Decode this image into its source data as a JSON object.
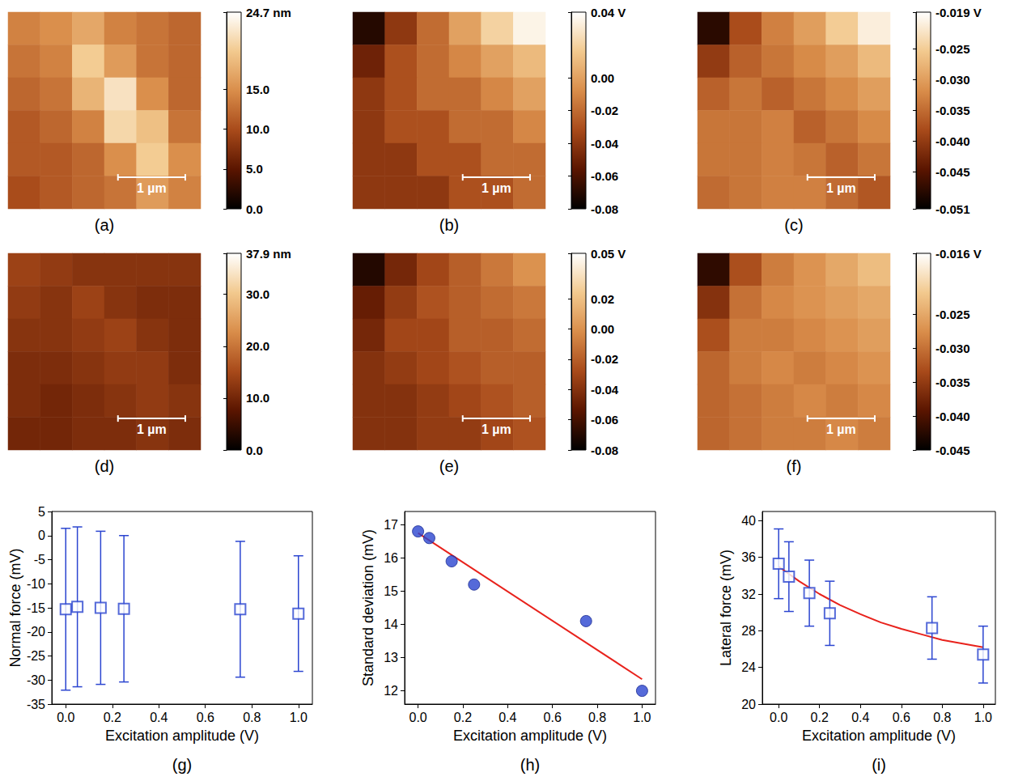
{
  "chart_data": [
    {
      "type": "heatmap",
      "title": "(a)",
      "image_size": 2.86,
      "scale_bar": {
        "label": "1 µm",
        "length": 1
      },
      "cells": [
        [
          14,
          15,
          17,
          14,
          13,
          12
        ],
        [
          13,
          14,
          20,
          16,
          13,
          12
        ],
        [
          12,
          13,
          18,
          22,
          15,
          12
        ],
        [
          11,
          12,
          14,
          21,
          19,
          13
        ],
        [
          11,
          11,
          12,
          15,
          20,
          15
        ],
        [
          10,
          11,
          12,
          13,
          16,
          14
        ]
      ],
      "colorbar": {
        "range": [
          0,
          24.7
        ],
        "ticks": [
          {
            "value": 0,
            "label": "0.0"
          },
          {
            "value": 5,
            "label": "5.0"
          },
          {
            "value": 10,
            "label": "10.0"
          },
          {
            "value": 15,
            "label": "15.0"
          },
          {
            "value": 24.7,
            "label": "24.7 nm"
          }
        ]
      }
    },
    {
      "type": "heatmap",
      "title": "(b)",
      "image_size": 2.86,
      "scale_bar": {
        "label": "1 µm",
        "length": 1
      },
      "cells": [
        [
          -0.07,
          -0.04,
          -0.02,
          0.0,
          0.02,
          0.035
        ],
        [
          -0.05,
          -0.03,
          -0.02,
          -0.01,
          0.0,
          0.01
        ],
        [
          -0.04,
          -0.03,
          -0.02,
          -0.02,
          -0.01,
          0.0
        ],
        [
          -0.04,
          -0.03,
          -0.03,
          -0.02,
          -0.02,
          -0.01
        ],
        [
          -0.04,
          -0.04,
          -0.03,
          -0.03,
          -0.02,
          -0.02
        ],
        [
          -0.04,
          -0.04,
          -0.04,
          -0.03,
          -0.03,
          -0.02
        ]
      ],
      "colorbar": {
        "range": [
          -0.08,
          0.04
        ],
        "ticks": [
          {
            "value": -0.08,
            "label": "-0.08"
          },
          {
            "value": -0.06,
            "label": "-0.06"
          },
          {
            "value": -0.04,
            "label": "-0.04"
          },
          {
            "value": -0.02,
            "label": "-0.02"
          },
          {
            "value": 0,
            "label": "0.00"
          },
          {
            "value": 0.04,
            "label": "0.04 V"
          }
        ]
      }
    },
    {
      "type": "heatmap",
      "title": "(c)",
      "image_size": 2.86,
      "scale_bar": {
        "label": "1 µm",
        "length": 1
      },
      "cells": [
        [
          -0.048,
          -0.038,
          -0.033,
          -0.03,
          -0.025,
          -0.021
        ],
        [
          -0.04,
          -0.036,
          -0.034,
          -0.032,
          -0.03,
          -0.027
        ],
        [
          -0.036,
          -0.034,
          -0.036,
          -0.034,
          -0.032,
          -0.03
        ],
        [
          -0.034,
          -0.034,
          -0.033,
          -0.036,
          -0.034,
          -0.032
        ],
        [
          -0.034,
          -0.034,
          -0.033,
          -0.034,
          -0.036,
          -0.034
        ],
        [
          -0.035,
          -0.034,
          -0.033,
          -0.033,
          -0.035,
          -0.037
        ]
      ],
      "colorbar": {
        "range": [
          -0.051,
          -0.019
        ],
        "ticks": [
          {
            "value": -0.051,
            "label": "-0.051"
          },
          {
            "value": -0.045,
            "label": "-0.045"
          },
          {
            "value": -0.04,
            "label": "-0.040"
          },
          {
            "value": -0.035,
            "label": "-0.035"
          },
          {
            "value": -0.03,
            "label": "-0.030"
          },
          {
            "value": -0.025,
            "label": "-0.025"
          },
          {
            "value": -0.019,
            "label": "-0.019 V"
          }
        ]
      }
    },
    {
      "type": "heatmap",
      "title": "(d)",
      "image_size": 2.86,
      "scale_bar": {
        "label": "1 µm",
        "length": 1
      },
      "cells": [
        [
          14,
          13,
          12,
          12,
          12,
          12
        ],
        [
          13,
          12,
          14,
          12,
          11,
          11
        ],
        [
          12,
          12,
          13,
          14,
          12,
          11
        ],
        [
          11,
          11,
          12,
          13,
          13,
          11
        ],
        [
          11,
          10,
          11,
          12,
          13,
          12
        ],
        [
          10,
          10,
          11,
          11,
          12,
          11
        ]
      ],
      "colorbar": {
        "range": [
          0,
          37.9
        ],
        "ticks": [
          {
            "value": 0,
            "label": "0.0"
          },
          {
            "value": 10,
            "label": "10.0"
          },
          {
            "value": 20,
            "label": "20.0"
          },
          {
            "value": 30,
            "label": "30.0"
          },
          {
            "value": 37.9,
            "label": "37.9 nm"
          }
        ]
      }
    },
    {
      "type": "heatmap",
      "title": "(e)",
      "image_size": 2.86,
      "scale_bar": {
        "label": "1 µm",
        "length": 1
      },
      "cells": [
        [
          -0.07,
          -0.045,
          -0.03,
          -0.02,
          -0.01,
          0.0
        ],
        [
          -0.05,
          -0.035,
          -0.025,
          -0.02,
          -0.015,
          -0.01
        ],
        [
          -0.045,
          -0.03,
          -0.03,
          -0.02,
          -0.02,
          -0.015
        ],
        [
          -0.04,
          -0.035,
          -0.03,
          -0.025,
          -0.02,
          -0.02
        ],
        [
          -0.04,
          -0.04,
          -0.035,
          -0.03,
          -0.025,
          -0.02
        ],
        [
          -0.04,
          -0.04,
          -0.035,
          -0.035,
          -0.03,
          -0.025
        ]
      ],
      "colorbar": {
        "range": [
          -0.08,
          0.05
        ],
        "ticks": [
          {
            "value": -0.08,
            "label": "-0.08"
          },
          {
            "value": -0.06,
            "label": "-0.06"
          },
          {
            "value": -0.04,
            "label": "-0.04"
          },
          {
            "value": -0.02,
            "label": "-0.02"
          },
          {
            "value": 0,
            "label": "0.00"
          },
          {
            "value": 0.02,
            "label": "0.02"
          },
          {
            "value": 0.05,
            "label": "0.05 V"
          }
        ]
      }
    },
    {
      "type": "heatmap",
      "title": "(f)",
      "image_size": 2.86,
      "scale_bar": {
        "label": "1 µm",
        "length": 1
      },
      "cells": [
        [
          -0.042,
          -0.033,
          -0.029,
          -0.027,
          -0.025,
          -0.023
        ],
        [
          -0.036,
          -0.03,
          -0.028,
          -0.027,
          -0.026,
          -0.025
        ],
        [
          -0.033,
          -0.029,
          -0.029,
          -0.028,
          -0.027,
          -0.026
        ],
        [
          -0.031,
          -0.029,
          -0.028,
          -0.029,
          -0.028,
          -0.027
        ],
        [
          -0.031,
          -0.03,
          -0.029,
          -0.028,
          -0.029,
          -0.028
        ],
        [
          -0.031,
          -0.03,
          -0.029,
          -0.029,
          -0.028,
          -0.029
        ]
      ],
      "colorbar": {
        "range": [
          -0.045,
          -0.016
        ],
        "ticks": [
          {
            "value": -0.045,
            "label": "-0.045"
          },
          {
            "value": -0.04,
            "label": "-0.040"
          },
          {
            "value": -0.035,
            "label": "-0.035"
          },
          {
            "value": -0.03,
            "label": "-0.030"
          },
          {
            "value": -0.025,
            "label": "-0.025"
          },
          {
            "value": -0.016,
            "label": "-0.016 V"
          }
        ]
      }
    },
    {
      "type": "scatter",
      "title": "(g)",
      "x_label": "Excitation amplitude (V)",
      "y_label": "Normal force (mV)",
      "grid": false,
      "xlim": [
        -0.06,
        1.06
      ],
      "xticks": [
        {
          "value": 0,
          "label": "0.0"
        },
        {
          "value": 0.2,
          "label": "0.2"
        },
        {
          "value": 0.4,
          "label": "0.4"
        },
        {
          "value": 0.6,
          "label": "0.6"
        },
        {
          "value": 0.8,
          "label": "0.8"
        },
        {
          "value": 1,
          "label": "1.0"
        }
      ],
      "ylim": [
        -35,
        5
      ],
      "yticks": [
        -35,
        -30,
        -25,
        -20,
        -15,
        -10,
        -5,
        0,
        5
      ],
      "series": [
        {
          "type": "scatter",
          "marker": "square_open",
          "color": "#2b45d0",
          "x": [
            0,
            0.05,
            0.15,
            0.25,
            0.75,
            1.0
          ],
          "values": [
            -15.3,
            -14.8,
            -15.0,
            -15.2,
            -15.3,
            -16.2
          ],
          "errors": [
            16.8,
            16.6,
            15.9,
            15.2,
            14.1,
            12.0
          ]
        }
      ]
    },
    {
      "type": "scatter",
      "title": "(h)",
      "x_label": "Excitation amplitude (V)",
      "y_label": "Standard deviation (mV)",
      "grid": false,
      "xlim": [
        -0.06,
        1.06
      ],
      "xticks": [
        {
          "value": 0,
          "label": "0.0"
        },
        {
          "value": 0.2,
          "label": "0.2"
        },
        {
          "value": 0.4,
          "label": "0.4"
        },
        {
          "value": 0.6,
          "label": "0.6"
        },
        {
          "value": 0.8,
          "label": "0.8"
        },
        {
          "value": 1,
          "label": "1.0"
        }
      ],
      "ylim": [
        11.6,
        17.4
      ],
      "yticks": [
        12,
        13,
        14,
        15,
        16,
        17
      ],
      "series": [
        {
          "type": "scatter",
          "marker": "circle",
          "color": "#2b45d0",
          "x": [
            0,
            0.05,
            0.15,
            0.25,
            0.75,
            1.0
          ],
          "values": [
            16.8,
            16.6,
            15.9,
            15.2,
            14.1,
            12.0
          ]
        },
        {
          "type": "line",
          "marker": "none",
          "line_style": "solid",
          "color": "#e8221c",
          "x": [
            0,
            1.0
          ],
          "values": [
            16.75,
            12.35
          ]
        }
      ]
    },
    {
      "type": "scatter",
      "title": "(i)",
      "x_label": "Excitation amplitude (V)",
      "y_label": "Lateral force (mV)",
      "grid": false,
      "xlim": [
        -0.08,
        1.06
      ],
      "xticks": [
        {
          "value": 0,
          "label": "0.0"
        },
        {
          "value": 0.2,
          "label": "0.2"
        },
        {
          "value": 0.4,
          "label": "0.4"
        },
        {
          "value": 0.6,
          "label": "0.6"
        },
        {
          "value": 0.8,
          "label": "0.8"
        },
        {
          "value": 1,
          "label": "1.0"
        }
      ],
      "ylim": [
        20,
        41
      ],
      "yticks": [
        20,
        24,
        28,
        32,
        36,
        40
      ],
      "series": [
        {
          "type": "scatter",
          "marker": "square_open",
          "color": "#2b45d0",
          "x": [
            0,
            0.05,
            0.15,
            0.25,
            0.75,
            1.0
          ],
          "values": [
            35.3,
            33.9,
            32.1,
            29.9,
            28.3,
            25.4
          ],
          "errors": [
            3.8,
            3.8,
            3.6,
            3.5,
            3.4,
            3.1
          ]
        },
        {
          "type": "line",
          "marker": "none",
          "line_style": "solid",
          "color": "#e8221c",
          "x": [
            0,
            0.1,
            0.2,
            0.3,
            0.4,
            0.5,
            0.6,
            0.7,
            0.8,
            0.9,
            1.0
          ],
          "values": [
            35.0,
            33.4,
            32.0,
            30.8,
            29.8,
            28.9,
            28.2,
            27.6,
            27.0,
            26.6,
            26.2
          ]
        }
      ]
    }
  ]
}
